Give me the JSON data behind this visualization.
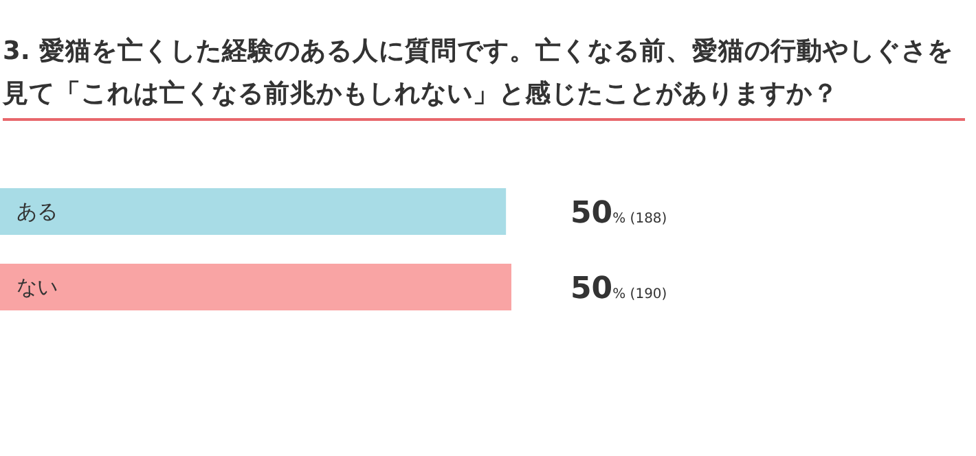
{
  "chart_data": {
    "type": "bar",
    "orientation": "horizontal",
    "title": "3. 愛猫を亡くした経験のある人に質問です。亡くなる前、愛猫の行動やしぐさを見て「これは亡くなる前兆かもしれない」と感じたことがありますか？",
    "categories": [
      "ある",
      "ない"
    ],
    "values": [
      188,
      190
    ],
    "colors": [
      "#a8dce6",
      "#f9a4a4"
    ],
    "value_labels": [
      "50% (188)",
      "50% (190)"
    ]
  }
}
